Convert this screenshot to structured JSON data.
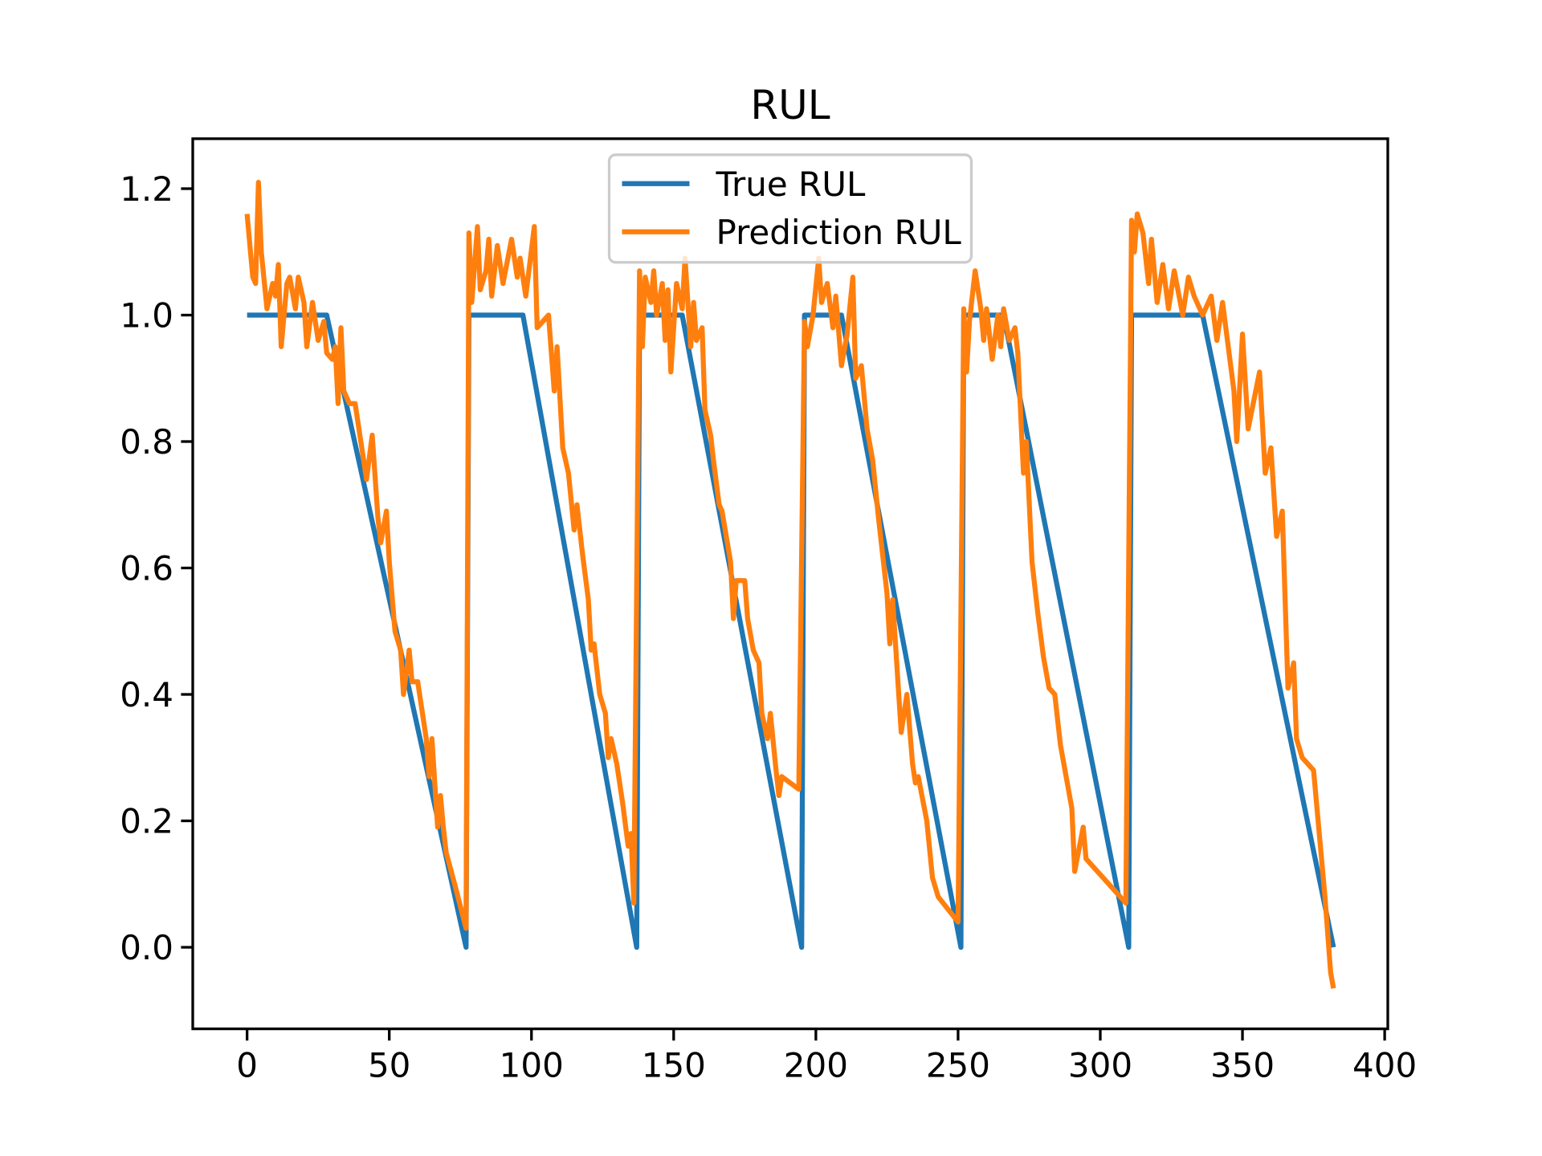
{
  "chart_data": {
    "type": "line",
    "title": "RUL",
    "xlim": [
      -19.1,
      401.1
    ],
    "xticks": [
      0,
      50,
      100,
      150,
      200,
      250,
      300,
      350,
      400
    ],
    "ylim": [
      -0.129,
      1.279
    ],
    "yticks": [
      {
        "value": 0,
        "label": "0.0"
      },
      0.2,
      0.4,
      0.6,
      0.8,
      {
        "value": 1,
        "label": "1.0"
      },
      1.2
    ],
    "legend": "upper center",
    "grid": false,
    "series": [
      {
        "name": "True RUL",
        "color": "#1f77b4",
        "x": [
          0,
          28,
          77,
          78,
          97,
          137,
          138,
          153,
          195,
          196,
          209,
          251,
          252,
          266,
          310,
          311,
          336,
          382
        ],
        "values": [
          1,
          1,
          0,
          1,
          1,
          0,
          1,
          1,
          0,
          1,
          1,
          0,
          1,
          1,
          0,
          1,
          1,
          0
        ]
      },
      {
        "name": "Prediction RUL",
        "color": "#ff7f0e",
        "x": [
          0,
          2,
          3,
          4,
          5,
          7,
          9,
          10,
          11,
          12,
          14,
          15,
          17,
          18,
          20,
          21,
          23,
          25,
          27,
          28,
          30,
          31,
          32,
          33,
          34,
          36,
          38,
          40,
          42,
          44,
          46,
          47,
          49,
          50,
          52,
          54,
          55,
          57,
          58,
          60,
          62,
          63,
          64,
          65,
          67,
          68,
          69,
          70,
          73,
          77,
          78,
          79,
          81,
          82,
          84,
          85,
          86,
          88,
          90,
          93,
          95,
          96,
          98,
          101,
          102,
          106,
          108,
          109,
          111,
          113,
          115,
          116,
          118,
          120,
          121,
          122,
          124,
          126,
          127,
          128,
          130,
          132,
          134,
          135,
          136,
          138,
          139,
          140,
          142,
          143,
          144,
          146,
          147,
          148,
          149,
          151,
          153,
          154,
          156,
          157,
          158,
          160,
          161,
          163,
          164,
          166,
          167,
          170,
          171,
          172,
          175,
          176,
          178,
          180,
          181,
          183,
          184,
          186,
          187,
          188,
          194,
          196,
          197,
          199,
          201,
          202,
          204,
          206,
          207,
          209,
          211,
          213,
          214,
          216,
          218,
          220,
          222,
          223,
          225,
          226,
          227,
          229,
          230,
          232,
          234,
          235,
          236,
          239,
          241,
          243,
          250,
          252,
          253,
          254,
          256,
          258,
          259,
          260,
          262,
          264,
          265,
          266,
          268,
          270,
          271,
          273,
          274,
          276,
          278,
          280,
          282,
          284,
          286,
          288,
          290,
          291,
          294,
          295,
          309,
          311,
          312,
          313,
          315,
          317,
          318,
          320,
          322,
          324,
          326,
          329,
          331,
          333,
          336,
          339,
          341,
          343,
          345,
          347,
          348,
          350,
          352,
          356,
          358,
          360,
          362,
          364,
          366,
          368,
          369,
          371,
          375,
          379,
          381,
          382
        ],
        "values": [
          1.16,
          1.06,
          1.05,
          1.21,
          1.1,
          1.01,
          1.05,
          1.03,
          1.08,
          0.95,
          1.05,
          1.06,
          1.01,
          1.06,
          1.02,
          0.95,
          1.02,
          0.96,
          0.99,
          0.94,
          0.93,
          0.95,
          0.86,
          0.98,
          0.88,
          0.86,
          0.86,
          0.8,
          0.74,
          0.81,
          0.68,
          0.64,
          0.69,
          0.61,
          0.5,
          0.47,
          0.4,
          0.47,
          0.42,
          0.42,
          0.36,
          0.33,
          0.27,
          0.33,
          0.19,
          0.24,
          0.19,
          0.15,
          0.1,
          0.03,
          1.13,
          1.02,
          1.14,
          1.04,
          1.07,
          1.12,
          1.03,
          1.11,
          1.05,
          1.12,
          1.06,
          1.09,
          1.03,
          1.14,
          0.98,
          1.0,
          0.88,
          0.95,
          0.79,
          0.75,
          0.66,
          0.7,
          0.62,
          0.55,
          0.47,
          0.48,
          0.4,
          0.37,
          0.3,
          0.33,
          0.29,
          0.23,
          0.16,
          0.18,
          0.07,
          1.07,
          0.95,
          1.06,
          1.02,
          1.07,
          1.0,
          1.05,
          0.96,
          1.04,
          0.91,
          1.05,
          1.01,
          1.09,
          0.95,
          1.02,
          0.96,
          0.98,
          0.85,
          0.81,
          0.77,
          0.7,
          0.69,
          0.61,
          0.52,
          0.58,
          0.58,
          0.52,
          0.47,
          0.45,
          0.37,
          0.33,
          0.37,
          0.28,
          0.24,
          0.27,
          0.25,
          0.99,
          0.95,
          1.0,
          1.09,
          1.02,
          1.05,
          0.98,
          1.03,
          0.92,
          0.97,
          1.06,
          0.9,
          0.92,
          0.82,
          0.77,
          0.68,
          0.64,
          0.56,
          0.48,
          0.55,
          0.41,
          0.34,
          0.4,
          0.29,
          0.26,
          0.27,
          0.2,
          0.11,
          0.08,
          0.04,
          1.01,
          0.91,
          0.99,
          1.07,
          1.01,
          0.96,
          1.01,
          0.93,
          1.0,
          0.95,
          1.01,
          0.96,
          0.98,
          0.94,
          0.75,
          0.8,
          0.61,
          0.53,
          0.46,
          0.41,
          0.4,
          0.32,
          0.27,
          0.22,
          0.12,
          0.19,
          0.14,
          0.07,
          1.15,
          1.1,
          1.16,
          1.13,
          1.05,
          1.12,
          1.02,
          1.08,
          1.01,
          1.07,
          1.0,
          1.06,
          1.03,
          1.0,
          1.03,
          0.96,
          1.02,
          0.95,
          0.88,
          0.8,
          0.97,
          0.82,
          0.91,
          0.75,
          0.79,
          0.65,
          0.69,
          0.41,
          0.45,
          0.33,
          0.3,
          0.28,
          0.08,
          -0.04,
          -0.065
        ]
      }
    ]
  }
}
